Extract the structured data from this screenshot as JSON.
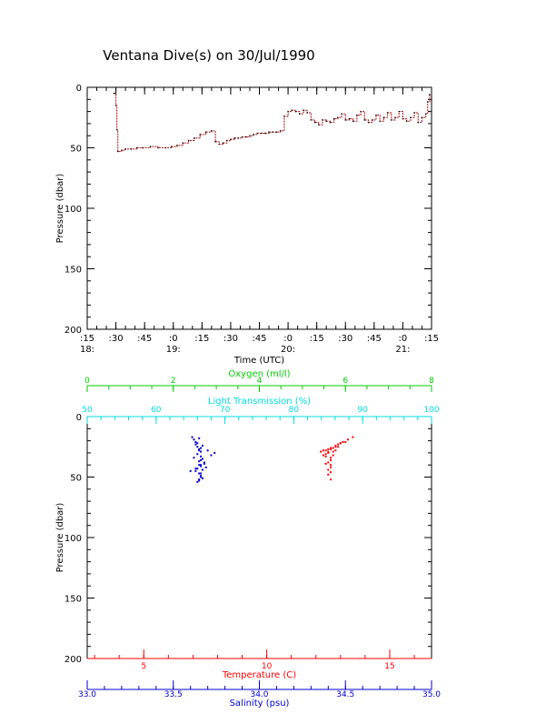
{
  "title": "Ventana Dive(s) on 30/Jul/1990",
  "colors": {
    "axis": "#000000",
    "depth_trace": "#b22222",
    "oxygen": "#00cc00",
    "transmission": "#00dddd",
    "temperature": "#ff0000",
    "salinity": "#0000cc"
  },
  "chart_data": [
    {
      "type": "line",
      "name": "depth-vs-time",
      "xlabel": "Time (UTC)",
      "ylabel": "Pressure (dbar)",
      "xlim_minutes": [
        15,
        195
      ],
      "ylim": [
        200,
        0
      ],
      "y_ticks": [
        "0",
        "50",
        "100",
        "150",
        "200"
      ],
      "x_tick_minute_labels": [
        ":15",
        ":30",
        ":45",
        ":0",
        ":15",
        ":30",
        ":45",
        ":0",
        ":15",
        ":30",
        ":45",
        ":0",
        ":15"
      ],
      "x_tick_hour_labels": [
        {
          "label": "18:",
          "tick": 0
        },
        {
          "label": "19:",
          "tick": 3
        },
        {
          "label": "20:",
          "tick": 7
        },
        {
          "label": "21:",
          "tick": 11
        }
      ],
      "series": [
        {
          "minutes": [
            29,
            30,
            30.5,
            31,
            33,
            35,
            38,
            41,
            44,
            48,
            52,
            56,
            59,
            62,
            65,
            68,
            71,
            74,
            77,
            80,
            82,
            84,
            86,
            88,
            90,
            92,
            94,
            96,
            98,
            100,
            102,
            104,
            106,
            108,
            110,
            112,
            114,
            116,
            118,
            120,
            122,
            124,
            126,
            128,
            130,
            132,
            134,
            136,
            138,
            140,
            142,
            144,
            146,
            148,
            150,
            152,
            154,
            156,
            158,
            160,
            162,
            164,
            166,
            168,
            170,
            172,
            174,
            176,
            178,
            180,
            182,
            184,
            186,
            188,
            190,
            192,
            193,
            194
          ],
          "pressure": [
            5,
            15,
            35,
            53,
            52,
            51,
            51,
            50,
            50,
            49,
            50,
            50,
            49,
            48,
            46,
            44,
            42,
            39,
            37,
            36,
            45,
            47,
            46,
            44,
            43,
            42,
            42,
            41,
            41,
            40,
            39,
            38,
            38,
            38,
            37,
            37,
            37,
            36,
            24,
            20,
            19,
            20,
            22,
            19,
            21,
            27,
            29,
            31,
            27,
            28,
            29,
            26,
            25,
            22,
            27,
            26,
            28,
            23,
            20,
            27,
            29,
            27,
            23,
            28,
            25,
            21,
            27,
            25,
            20,
            26,
            28,
            25,
            21,
            29,
            25,
            22,
            12,
            6
          ]
        }
      ]
    },
    {
      "type": "scatter",
      "name": "profiles",
      "ylabel": "Pressure (dbar)",
      "ylim": [
        200,
        0
      ],
      "y_ticks": [
        "0",
        "50",
        "100",
        "150",
        "200"
      ],
      "top_axes": [
        {
          "label": "Oxygen (ml/l)",
          "range": [
            0,
            8
          ],
          "ticks": [
            "0",
            "2",
            "4",
            "6",
            "8"
          ],
          "values": [
            0,
            2,
            4,
            6,
            8
          ]
        },
        {
          "label": "Light Transmission (%)",
          "range": [
            50,
            100
          ],
          "ticks": [
            "50",
            "60",
            "70",
            "80",
            "90",
            "100"
          ],
          "values": [
            50,
            60,
            70,
            80,
            90,
            100
          ]
        }
      ],
      "bottom_axes": [
        {
          "label": "Temperature (C)",
          "range": [
            2.7,
            16.7
          ],
          "ticks": [
            "5",
            "10",
            "15"
          ],
          "values": [
            5,
            10,
            15
          ]
        },
        {
          "label": "Salinity (psu)",
          "range": [
            33.0,
            35.0
          ],
          "ticks": [
            "33.0",
            "33.5",
            "34.0",
            "34.5",
            "35.0"
          ],
          "values": [
            33.0,
            33.5,
            34.0,
            34.5,
            35.0
          ]
        }
      ],
      "series": [
        {
          "color_key": "salinity",
          "salinity": [
            33.61,
            33.62,
            33.63,
            33.63,
            33.64,
            33.65,
            33.66,
            33.64,
            33.66,
            33.67,
            33.65,
            33.68,
            33.66,
            33.64,
            33.63,
            33.65,
            33.66,
            33.67,
            33.65,
            33.64,
            33.66,
            33.68,
            33.65,
            33.66,
            33.64,
            33.67,
            33.66,
            33.65,
            33.7,
            33.72,
            33.74,
            33.6,
            33.63,
            33.66,
            33.65,
            33.66,
            33.65,
            33.69,
            33.62,
            33.67
          ],
          "pressure": [
            17,
            19,
            21,
            23,
            25,
            27,
            29,
            31,
            33,
            35,
            37,
            39,
            41,
            43,
            45,
            47,
            49,
            51,
            53,
            54,
            36,
            38,
            40,
            40,
            22,
            24,
            26,
            28,
            28,
            32,
            30,
            45,
            43,
            47,
            52,
            50,
            18,
            42,
            34,
            44
          ]
        },
        {
          "color_key": "temperature",
          "temperature": [
            12.2,
            12.4,
            12.5,
            12.6,
            12.8,
            12.9,
            13.0,
            13.2,
            13.3,
            13.5,
            12.4,
            12.5,
            12.6,
            12.7,
            12.8,
            12.7,
            12.6,
            12.6,
            12.5,
            12.6,
            12.6,
            12.5,
            12.6,
            12.5,
            12.6,
            12.4,
            12.7,
            12.9,
            13.1,
            12.3,
            12.3,
            12.5,
            12.8,
            13.0,
            12.4
          ],
          "pressure": [
            29,
            28,
            27,
            26,
            25,
            23,
            22,
            21,
            19,
            17,
            31,
            29,
            27,
            26,
            24,
            32,
            34,
            36,
            38,
            40,
            42,
            44,
            46,
            48,
            52,
            33,
            29,
            25,
            21,
            28,
            32,
            30,
            28,
            22,
            39
          ]
        }
      ]
    }
  ]
}
